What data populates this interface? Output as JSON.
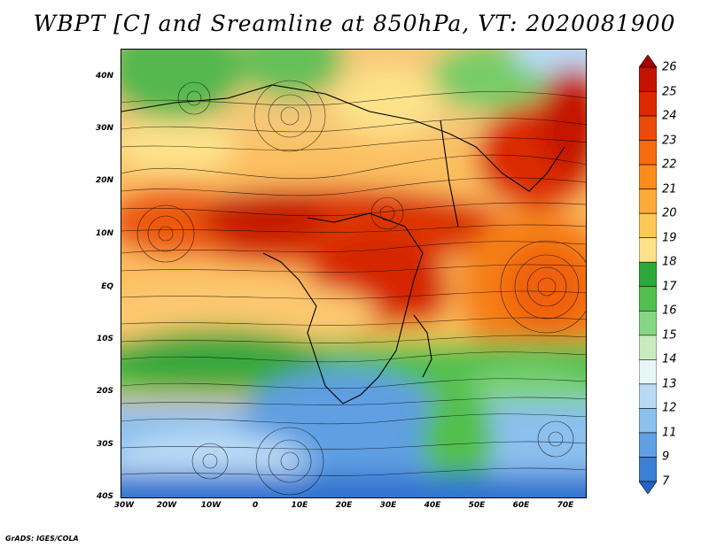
{
  "title": "WBPT [C] and Sreamline at 850hPa, VT: 2020081900",
  "credit": "GrADS: IGES/COLA",
  "map": {
    "projection": "lat-lon",
    "lon_range": [
      -30,
      75
    ],
    "lat_range": [
      -40,
      45
    ],
    "field": "wet-bulb potential temperature with streamlines"
  },
  "axes": {
    "y_ticks": [
      "40N",
      "30N",
      "20N",
      "10N",
      "EQ",
      "10S",
      "20S",
      "30S",
      "40S"
    ],
    "x_ticks": [
      "30W",
      "20W",
      "10W",
      "0",
      "10E",
      "20E",
      "30E",
      "40E",
      "50E",
      "60E",
      "70E"
    ]
  },
  "colorbar": {
    "labels": [
      "26",
      "25",
      "24",
      "23",
      "22",
      "21",
      "20",
      "19",
      "18",
      "17",
      "16",
      "15",
      "14",
      "13",
      "12",
      "11",
      "9",
      "7"
    ],
    "colors": [
      "#a50000",
      "#c41200",
      "#dc2a00",
      "#ec4a08",
      "#f56b10",
      "#fa8c1e",
      "#fcab38",
      "#fec856",
      "#fde28a",
      "#2fa83a",
      "#52bf4e",
      "#86d784",
      "#c8ecc0",
      "#e6f7f5",
      "#b9daf5",
      "#8cc0ee",
      "#5f9fe2",
      "#3b7fd6",
      "#2363c8"
    ]
  }
}
